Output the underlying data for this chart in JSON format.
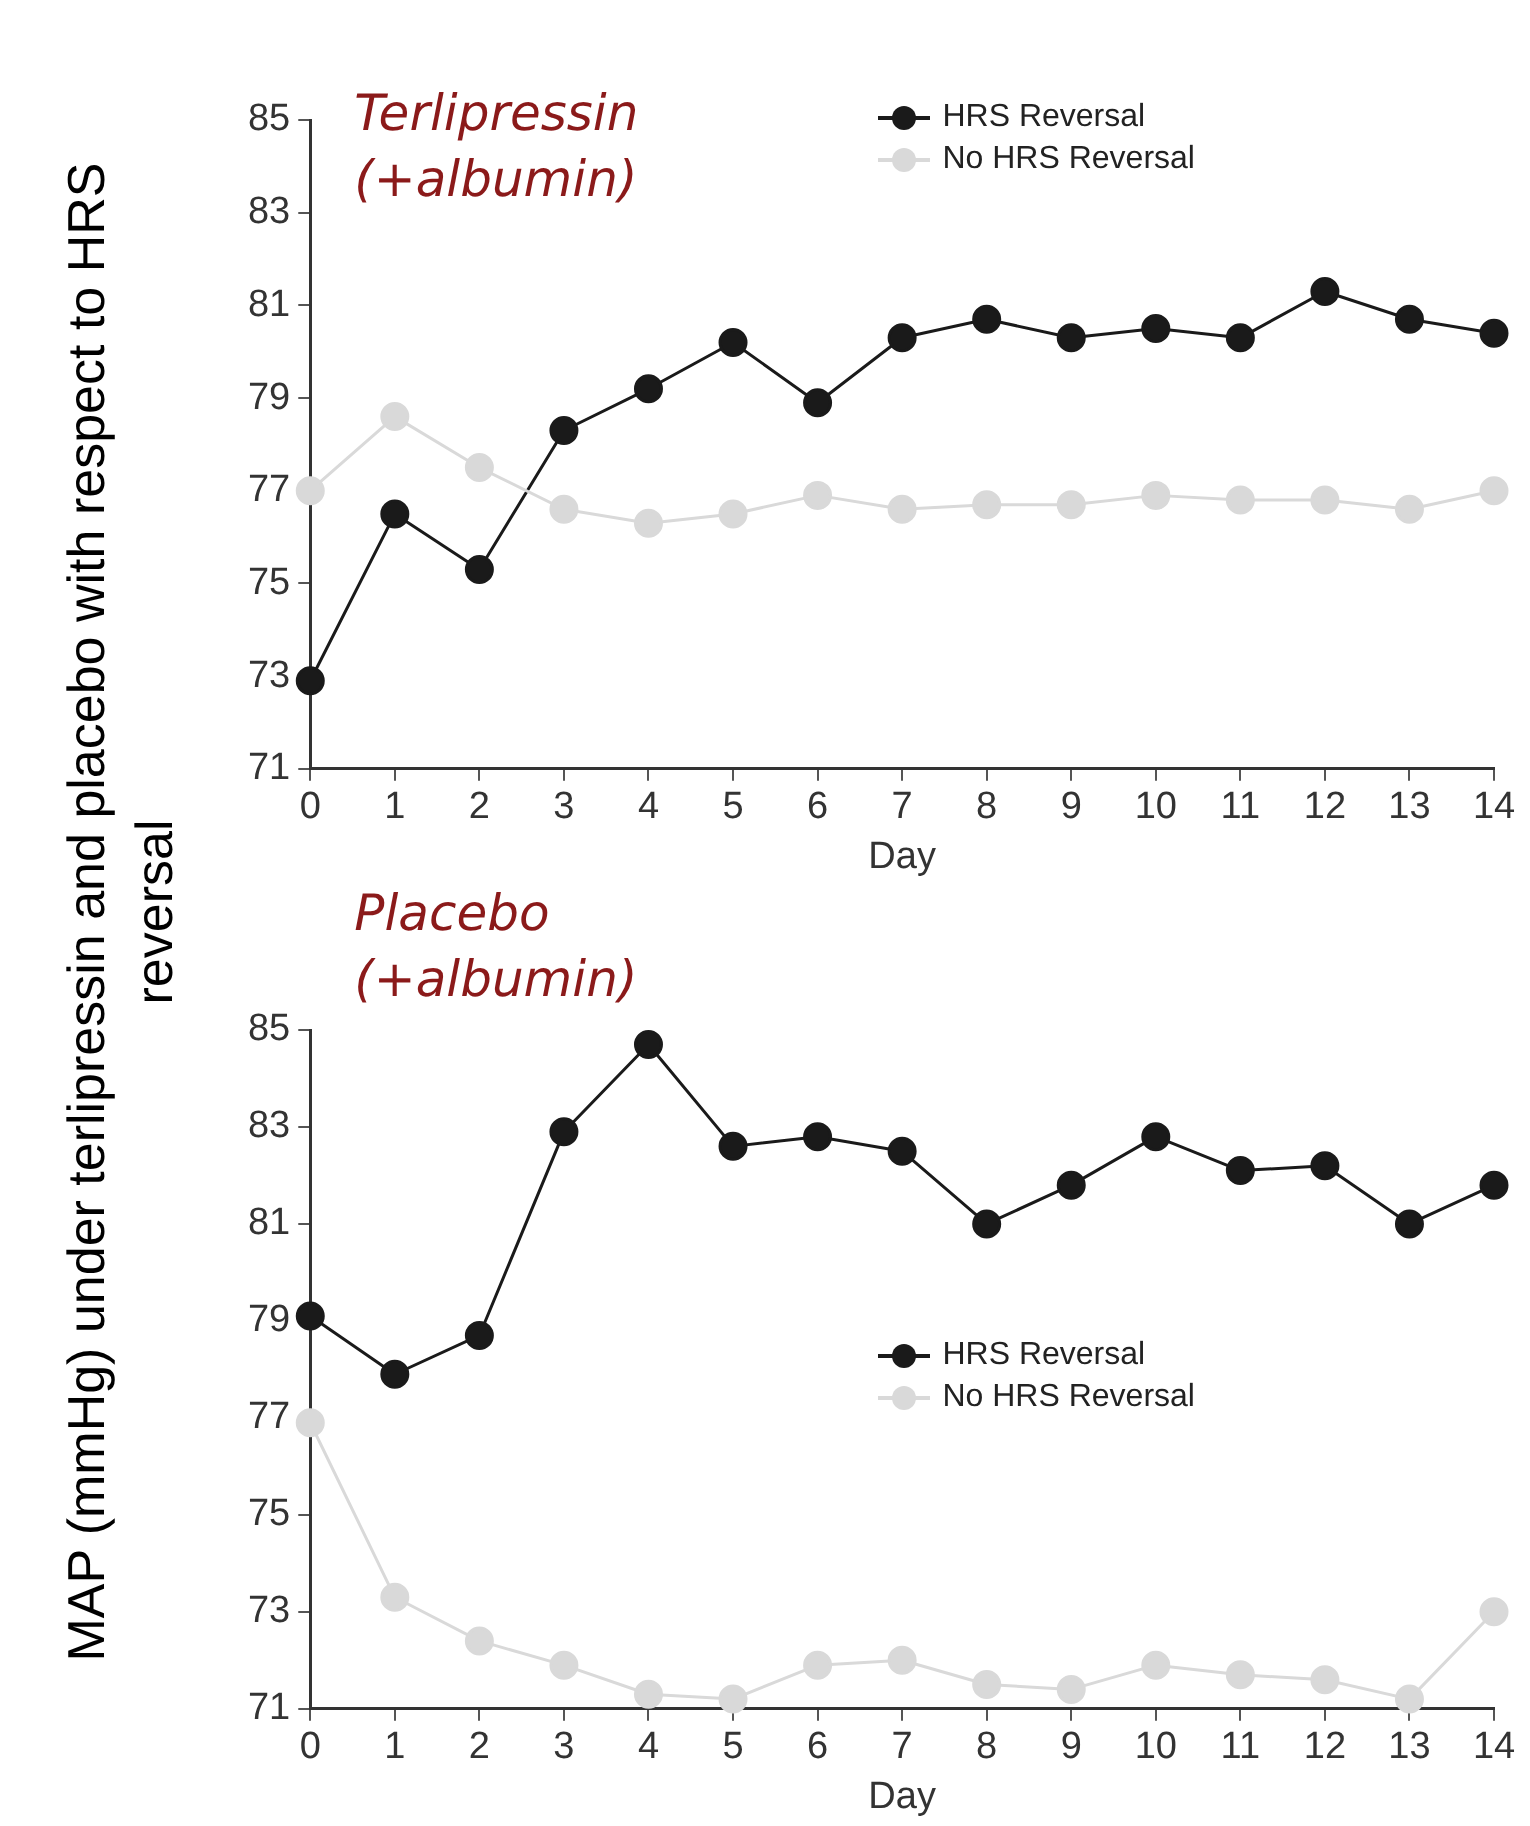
{
  "chart_data": [
    {
      "type": "line",
      "title": "Terlipressin (+albumin)",
      "xlabel": "Day",
      "ylabel": "MAP (mmHg) under terlipressin and placebo with respect to HRS reversal",
      "x": [
        0,
        1,
        2,
        3,
        4,
        5,
        6,
        7,
        8,
        9,
        10,
        11,
        12,
        13,
        14
      ],
      "xlim": [
        0,
        14
      ],
      "xticks": [
        0,
        1,
        2,
        3,
        4,
        5,
        6,
        7,
        8,
        9,
        10,
        11,
        12,
        13,
        14
      ],
      "ylim": [
        71,
        85
      ],
      "yticks": [
        71,
        73,
        75,
        77,
        79,
        81,
        83,
        85
      ],
      "grid": false,
      "legend": "top right",
      "marker": "circle",
      "line_style": "solid",
      "series": [
        {
          "name": "HRS Reversal",
          "color": "#1a1a1a",
          "values": [
            72.9,
            76.5,
            75.3,
            78.3,
            79.2,
            80.2,
            78.9,
            80.3,
            80.7,
            80.3,
            80.5,
            80.3,
            81.3,
            80.7,
            80.4
          ]
        },
        {
          "name": "No HRS Reversal",
          "color": "#d9d9d9",
          "values": [
            77.0,
            78.6,
            77.5,
            76.6,
            76.3,
            76.5,
            76.9,
            76.6,
            76.7,
            76.7,
            76.9,
            76.8,
            76.8,
            76.6,
            77.0
          ]
        }
      ]
    },
    {
      "type": "line",
      "title": "Placebo (+albumin)",
      "xlabel": "Day",
      "x": [
        0,
        1,
        2,
        3,
        4,
        5,
        6,
        7,
        8,
        9,
        10,
        11,
        12,
        13,
        14
      ],
      "xlim": [
        0,
        14
      ],
      "xticks": [
        0,
        1,
        2,
        3,
        4,
        5,
        6,
        7,
        8,
        9,
        10,
        11,
        12,
        13,
        14
      ],
      "ylim": [
        71,
        85
      ],
      "yticks": [
        71,
        73,
        75,
        77,
        79,
        81,
        83,
        85
      ],
      "grid": false,
      "legend": "right",
      "marker": "circle",
      "line_style": "solid",
      "series": [
        {
          "name": "HRS Reversal",
          "color": "#1a1a1a",
          "values": [
            79.1,
            77.9,
            78.7,
            82.9,
            84.7,
            82.6,
            82.8,
            82.5,
            81.0,
            81.8,
            82.8,
            82.1,
            82.2,
            81.0,
            81.8
          ]
        },
        {
          "name": "No HRS Reversal",
          "color": "#d9d9d9",
          "values": [
            76.9,
            73.3,
            72.4,
            71.9,
            71.3,
            71.2,
            71.9,
            72.0,
            71.5,
            71.4,
            71.9,
            71.7,
            71.6,
            71.2,
            73.0
          ]
        }
      ]
    }
  ]
}
